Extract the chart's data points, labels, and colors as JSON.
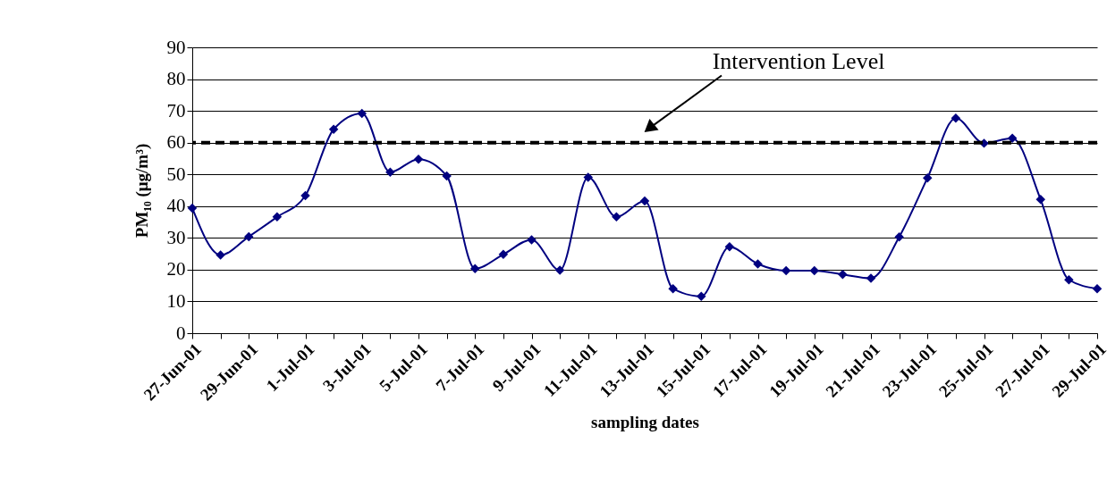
{
  "chart_data": {
    "type": "line",
    "xlabel": "sampling dates",
    "ylabel": "PM₁₀ (μg/m³)",
    "categories": [
      "27-Jun-01",
      null,
      "29-Jun-01",
      null,
      "1-Jul-01",
      null,
      "3-Jul-01",
      null,
      "5-Jul-01",
      null,
      "7-Jul-01",
      null,
      "9-Jul-01",
      null,
      "11-Jul-01",
      null,
      "13-Jul-01",
      null,
      "15-Jul-01",
      null,
      "17-Jul-01",
      null,
      "19-Jul-01",
      null,
      "21-Jul-01",
      null,
      "23-Jul-01",
      null,
      "25-Jul-01",
      null,
      "27-Jul-01",
      null,
      "29-Jul-01"
    ],
    "series": [
      {
        "color": "#000080",
        "values": [
          39.4,
          24.6,
          30.4,
          36.6,
          43.3,
          64.2,
          69.2,
          50.7,
          54.8,
          49.5,
          20.3,
          24.8,
          29.4,
          19.8,
          49.1,
          36.6,
          41.6,
          14.0,
          11.6,
          27.2,
          21.8,
          19.7,
          19.7,
          18.5,
          17.3,
          30.3,
          48.9,
          67.7,
          59.8,
          61.4,
          42.1,
          16.8,
          14.0
        ]
      }
    ],
    "ylim": [
      0,
      90
    ],
    "yticks": [
      0,
      10,
      20,
      30,
      40,
      50,
      60,
      70,
      80,
      90
    ],
    "grid": "y",
    "marker": "diamond",
    "line_style": "solid",
    "ref_lines": [
      {
        "axis": "y",
        "value": 60,
        "label": "Intervention Level",
        "color": "#000000",
        "line_style": "dashed"
      }
    ]
  }
}
